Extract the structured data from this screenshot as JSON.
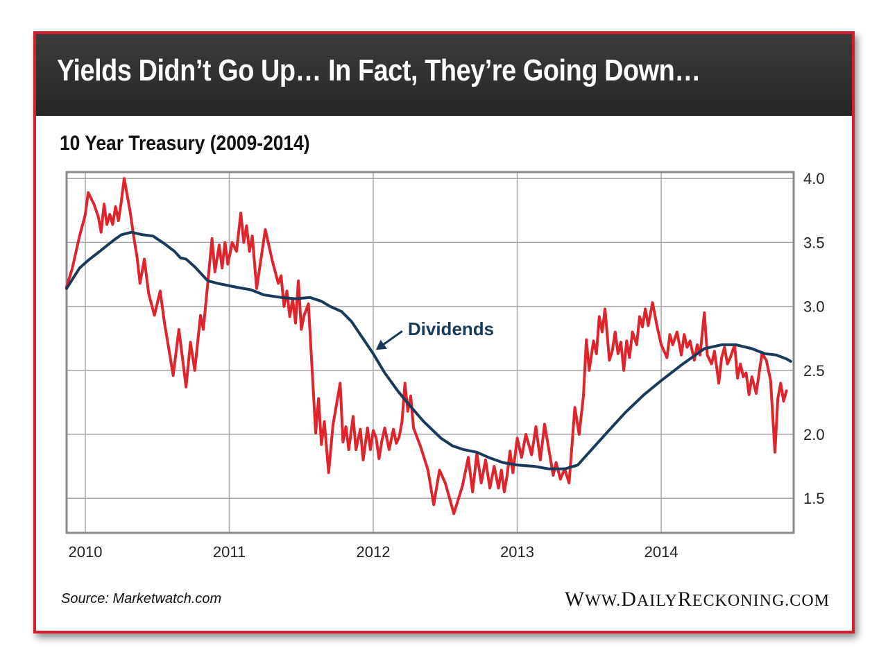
{
  "header": {
    "title": "Yields Didn’t Go Up… In Fact, They’re Going Down…"
  },
  "subtitle": "10 Year Treasury (2009-2014)",
  "footer": {
    "source": "Source: Marketwatch.com",
    "site": "www.DailyReckoning.com"
  },
  "colors": {
    "frame": "#d4202a",
    "header_bg": "#2f2f2f",
    "yield_line": "#e0242b",
    "dividends_line": "#1a3a5c",
    "grid": "#a8a8a8"
  },
  "chart_data": {
    "type": "line",
    "title": "10 Year Treasury (2009-2014)",
    "xlabel": "",
    "ylabel": "",
    "x_range": [
      2009.87,
      2014.92
    ],
    "ylim": [
      1.23,
      4.05
    ],
    "x_ticks": [
      2010,
      2011,
      2012,
      2013,
      2014
    ],
    "x_tick_labels": [
      "2010",
      "2011",
      "2012",
      "2013",
      "2014"
    ],
    "y_ticks": [
      1.5,
      2.0,
      2.5,
      3.0,
      3.5,
      4.0
    ],
    "y_tick_labels": [
      "1.5",
      "2.0",
      "2.5",
      "3.0",
      "3.5",
      "4.0"
    ],
    "grid": true,
    "annotations": [
      {
        "text": "Dividends",
        "series": "Dividends",
        "x": 2011.98,
        "y": 2.72
      }
    ],
    "series": [
      {
        "name": "10 Year Treasury Yield",
        "color": "#e0242b",
        "points": [
          [
            2009.87,
            3.15
          ],
          [
            2009.91,
            3.3
          ],
          [
            2009.96,
            3.55
          ],
          [
            2010.0,
            3.72
          ],
          [
            2010.02,
            3.89
          ],
          [
            2010.06,
            3.8
          ],
          [
            2010.09,
            3.7
          ],
          [
            2010.11,
            3.58
          ],
          [
            2010.13,
            3.8
          ],
          [
            2010.15,
            3.64
          ],
          [
            2010.17,
            3.72
          ],
          [
            2010.19,
            3.64
          ],
          [
            2010.21,
            3.78
          ],
          [
            2010.23,
            3.67
          ],
          [
            2010.25,
            3.82
          ],
          [
            2010.27,
            4.0
          ],
          [
            2010.31,
            3.75
          ],
          [
            2010.34,
            3.52
          ],
          [
            2010.36,
            3.38
          ],
          [
            2010.38,
            3.18
          ],
          [
            2010.41,
            3.37
          ],
          [
            2010.44,
            3.1
          ],
          [
            2010.48,
            2.93
          ],
          [
            2010.52,
            3.12
          ],
          [
            2010.55,
            2.87
          ],
          [
            2010.58,
            2.67
          ],
          [
            2010.61,
            2.46
          ],
          [
            2010.65,
            2.82
          ],
          [
            2010.7,
            2.37
          ],
          [
            2010.73,
            2.72
          ],
          [
            2010.76,
            2.5
          ],
          [
            2010.8,
            2.93
          ],
          [
            2010.82,
            2.82
          ],
          [
            2010.88,
            3.53
          ],
          [
            2010.9,
            3.27
          ],
          [
            2010.93,
            3.48
          ],
          [
            2010.95,
            3.3
          ],
          [
            2010.97,
            3.5
          ],
          [
            2010.99,
            3.33
          ],
          [
            2011.02,
            3.5
          ],
          [
            2011.05,
            3.43
          ],
          [
            2011.08,
            3.73
          ],
          [
            2011.1,
            3.5
          ],
          [
            2011.12,
            3.63
          ],
          [
            2011.14,
            3.43
          ],
          [
            2011.16,
            3.55
          ],
          [
            2011.19,
            3.14
          ],
          [
            2011.25,
            3.6
          ],
          [
            2011.3,
            3.35
          ],
          [
            2011.34,
            3.18
          ],
          [
            2011.36,
            3.24
          ],
          [
            2011.38,
            3.0
          ],
          [
            2011.4,
            3.12
          ],
          [
            2011.42,
            2.92
          ],
          [
            2011.44,
            3.06
          ],
          [
            2011.46,
            2.87
          ],
          [
            2011.48,
            3.2
          ],
          [
            2011.5,
            2.82
          ],
          [
            2011.52,
            2.93
          ],
          [
            2011.55,
            3.02
          ],
          [
            2011.6,
            2.01
          ],
          [
            2011.62,
            2.28
          ],
          [
            2011.64,
            1.92
          ],
          [
            2011.66,
            2.1
          ],
          [
            2011.69,
            1.7
          ],
          [
            2011.72,
            2.07
          ],
          [
            2011.77,
            2.4
          ],
          [
            2011.79,
            1.94
          ],
          [
            2011.81,
            2.06
          ],
          [
            2011.83,
            1.88
          ],
          [
            2011.86,
            2.14
          ],
          [
            2011.88,
            1.88
          ],
          [
            2011.91,
            2.04
          ],
          [
            2011.93,
            1.8
          ],
          [
            2011.96,
            2.05
          ],
          [
            2011.98,
            1.88
          ],
          [
            2012.0,
            2.03
          ],
          [
            2012.02,
            1.97
          ],
          [
            2012.04,
            1.81
          ],
          [
            2012.06,
            1.95
          ],
          [
            2012.08,
            2.05
          ],
          [
            2012.11,
            1.88
          ],
          [
            2012.14,
            2.04
          ],
          [
            2012.16,
            1.93
          ],
          [
            2012.18,
            1.98
          ],
          [
            2012.2,
            2.1
          ],
          [
            2012.22,
            2.4
          ],
          [
            2012.24,
            2.18
          ],
          [
            2012.26,
            2.3
          ],
          [
            2012.28,
            2.05
          ],
          [
            2012.33,
            1.9
          ],
          [
            2012.38,
            1.72
          ],
          [
            2012.42,
            1.45
          ],
          [
            2012.46,
            1.72
          ],
          [
            2012.5,
            1.62
          ],
          [
            2012.56,
            1.38
          ],
          [
            2012.62,
            1.6
          ],
          [
            2012.66,
            1.82
          ],
          [
            2012.69,
            1.55
          ],
          [
            2012.72,
            1.85
          ],
          [
            2012.75,
            1.62
          ],
          [
            2012.78,
            1.8
          ],
          [
            2012.81,
            1.58
          ],
          [
            2012.84,
            1.75
          ],
          [
            2012.87,
            1.58
          ],
          [
            2012.89,
            1.72
          ],
          [
            2012.91,
            1.55
          ],
          [
            2012.93,
            1.68
          ],
          [
            2012.95,
            1.87
          ],
          [
            2012.97,
            1.7
          ],
          [
            2013.0,
            1.97
          ],
          [
            2013.03,
            1.82
          ],
          [
            2013.06,
            2.0
          ],
          [
            2013.1,
            1.84
          ],
          [
            2013.13,
            2.06
          ],
          [
            2013.16,
            1.8
          ],
          [
            2013.19,
            2.08
          ],
          [
            2013.22,
            1.88
          ],
          [
            2013.25,
            1.68
          ],
          [
            2013.27,
            1.78
          ],
          [
            2013.3,
            1.65
          ],
          [
            2013.33,
            1.73
          ],
          [
            2013.36,
            1.62
          ],
          [
            2013.4,
            2.21
          ],
          [
            2013.43,
            2.0
          ],
          [
            2013.46,
            2.3
          ],
          [
            2013.48,
            2.74
          ],
          [
            2013.5,
            2.5
          ],
          [
            2013.53,
            2.73
          ],
          [
            2013.55,
            2.63
          ],
          [
            2013.57,
            2.92
          ],
          [
            2013.59,
            2.8
          ],
          [
            2013.61,
            2.98
          ],
          [
            2013.64,
            2.58
          ],
          [
            2013.66,
            2.65
          ],
          [
            2013.68,
            2.8
          ],
          [
            2013.7,
            2.63
          ],
          [
            2013.72,
            2.72
          ],
          [
            2013.74,
            2.5
          ],
          [
            2013.76,
            2.73
          ],
          [
            2013.78,
            2.6
          ],
          [
            2013.8,
            2.8
          ],
          [
            2013.83,
            2.7
          ],
          [
            2013.85,
            2.92
          ],
          [
            2013.87,
            2.84
          ],
          [
            2013.89,
            2.98
          ],
          [
            2013.91,
            2.85
          ],
          [
            2013.94,
            3.03
          ],
          [
            2013.97,
            2.85
          ],
          [
            2014.0,
            2.7
          ],
          [
            2014.04,
            2.6
          ],
          [
            2014.06,
            2.78
          ],
          [
            2014.08,
            2.7
          ],
          [
            2014.11,
            2.8
          ],
          [
            2014.14,
            2.62
          ],
          [
            2014.16,
            2.78
          ],
          [
            2014.18,
            2.68
          ],
          [
            2014.2,
            2.73
          ],
          [
            2014.23,
            2.58
          ],
          [
            2014.25,
            2.7
          ],
          [
            2014.27,
            2.62
          ],
          [
            2014.3,
            2.95
          ],
          [
            2014.32,
            2.62
          ],
          [
            2014.35,
            2.55
          ],
          [
            2014.37,
            2.65
          ],
          [
            2014.4,
            2.4
          ],
          [
            2014.42,
            2.6
          ],
          [
            2014.44,
            2.68
          ],
          [
            2014.46,
            2.55
          ],
          [
            2014.48,
            2.6
          ],
          [
            2014.51,
            2.7
          ],
          [
            2014.53,
            2.44
          ],
          [
            2014.55,
            2.55
          ],
          [
            2014.57,
            2.45
          ],
          [
            2014.59,
            2.48
          ],
          [
            2014.61,
            2.31
          ],
          [
            2014.63,
            2.45
          ],
          [
            2014.66,
            2.32
          ],
          [
            2014.7,
            2.63
          ],
          [
            2014.73,
            2.58
          ],
          [
            2014.76,
            2.42
          ],
          [
            2014.79,
            1.86
          ],
          [
            2014.81,
            2.28
          ],
          [
            2014.83,
            2.4
          ],
          [
            2014.85,
            2.26
          ],
          [
            2014.87,
            2.34
          ]
        ]
      },
      {
        "name": "Dividends",
        "color": "#1a3a5c",
        "points": [
          [
            2009.87,
            3.14
          ],
          [
            2009.96,
            3.3
          ],
          [
            2010.02,
            3.36
          ],
          [
            2010.1,
            3.43
          ],
          [
            2010.2,
            3.52
          ],
          [
            2010.25,
            3.56
          ],
          [
            2010.32,
            3.58
          ],
          [
            2010.4,
            3.56
          ],
          [
            2010.47,
            3.55
          ],
          [
            2010.55,
            3.49
          ],
          [
            2010.62,
            3.43
          ],
          [
            2010.66,
            3.38
          ],
          [
            2010.7,
            3.37
          ],
          [
            2010.76,
            3.31
          ],
          [
            2010.85,
            3.2
          ],
          [
            2010.92,
            3.18
          ],
          [
            2011.05,
            3.15
          ],
          [
            2011.15,
            3.13
          ],
          [
            2011.24,
            3.09
          ],
          [
            2011.36,
            3.07
          ],
          [
            2011.46,
            3.06
          ],
          [
            2011.56,
            3.07
          ],
          [
            2011.64,
            3.04
          ],
          [
            2011.7,
            3.0
          ],
          [
            2011.78,
            2.96
          ],
          [
            2011.85,
            2.88
          ],
          [
            2011.91,
            2.78
          ],
          [
            2012.0,
            2.63
          ],
          [
            2012.08,
            2.48
          ],
          [
            2012.17,
            2.34
          ],
          [
            2012.25,
            2.23
          ],
          [
            2012.35,
            2.1
          ],
          [
            2012.47,
            1.97
          ],
          [
            2012.55,
            1.91
          ],
          [
            2012.63,
            1.88
          ],
          [
            2012.72,
            1.86
          ],
          [
            2012.8,
            1.82
          ],
          [
            2012.9,
            1.78
          ],
          [
            2013.0,
            1.76
          ],
          [
            2013.12,
            1.75
          ],
          [
            2013.22,
            1.73
          ],
          [
            2013.33,
            1.73
          ],
          [
            2013.42,
            1.76
          ],
          [
            2013.5,
            1.86
          ],
          [
            2013.62,
            2.01
          ],
          [
            2013.75,
            2.17
          ],
          [
            2013.88,
            2.31
          ],
          [
            2014.0,
            2.42
          ],
          [
            2014.15,
            2.55
          ],
          [
            2014.3,
            2.67
          ],
          [
            2014.42,
            2.7
          ],
          [
            2014.52,
            2.7
          ],
          [
            2014.63,
            2.67
          ],
          [
            2014.72,
            2.63
          ],
          [
            2014.8,
            2.62
          ],
          [
            2014.87,
            2.59
          ],
          [
            2014.9,
            2.57
          ]
        ]
      }
    ]
  }
}
